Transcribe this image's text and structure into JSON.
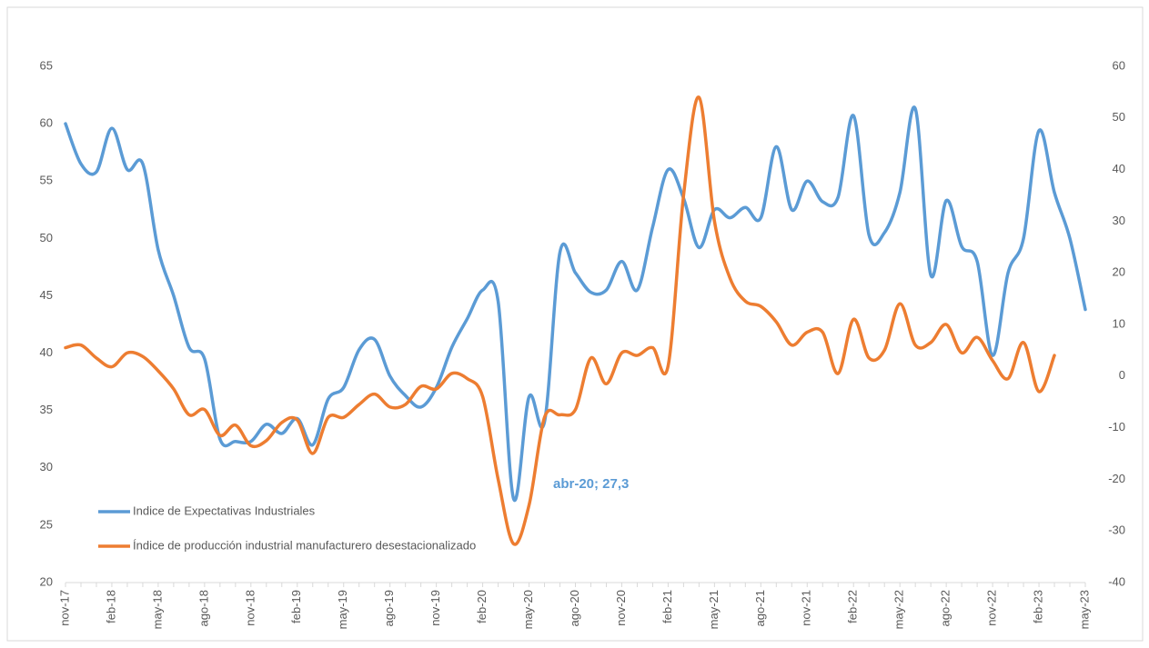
{
  "chart_data": {
    "type": "line",
    "categories": [
      "nov-17",
      null,
      null,
      "feb-18",
      null,
      null,
      "may-18",
      null,
      null,
      "ago-18",
      null,
      null,
      "nov-18",
      null,
      null,
      "feb-19",
      null,
      null,
      "may-19",
      null,
      null,
      "ago-19",
      null,
      null,
      "nov-19",
      null,
      null,
      "feb-20",
      null,
      null,
      "may-20",
      null,
      null,
      "ago-20",
      null,
      null,
      "nov-20",
      null,
      null,
      "feb-21",
      null,
      null,
      "may-21",
      null,
      null,
      "ago-21",
      null,
      null,
      "nov-21",
      null,
      null,
      "feb-22",
      null,
      null,
      "may-22",
      null,
      null,
      "ago-22",
      null,
      null,
      "nov-22",
      null,
      null,
      "feb-23",
      null,
      null,
      "may-23"
    ],
    "series": [
      {
        "name": "Indice de Expectativas Industriales",
        "color": "#5b9bd5",
        "values": [
          60,
          56.5,
          55.8,
          59.6,
          56,
          56.5,
          49,
          45,
          40.5,
          39.5,
          32.5,
          32.3,
          32.3,
          33.8,
          33,
          34.3,
          32,
          36,
          37,
          40.3,
          41.2,
          38,
          36.3,
          35.3,
          37,
          40.5,
          43,
          45.5,
          44.5,
          27.3,
          36.2,
          34,
          48.8,
          47,
          45.3,
          45.5,
          48,
          45.5,
          51,
          56,
          53.5,
          49.2,
          52.5,
          51.8,
          52.7,
          51.8,
          58,
          52.5,
          55,
          53.2,
          53.6,
          60.7,
          50.3,
          50.5,
          54,
          61.3,
          46.8,
          53.3,
          49.3,
          48,
          39.8,
          47,
          50,
          59.4,
          54,
          50,
          43.8
        ]
      },
      {
        "name": "Índice de producción industrial manufacturero desestacionalizado",
        "color": "#ed7d31",
        "axis": "y2",
        "values": [
          5.5,
          6,
          3.5,
          1.8,
          4.5,
          3.8,
          1,
          -2.5,
          -7.5,
          -6.5,
          -11.5,
          -9.5,
          -13.5,
          -12.5,
          -9,
          -8.5,
          -15,
          -8,
          -8,
          -5.5,
          -3.5,
          -6,
          -5.5,
          -2,
          -2.5,
          0.5,
          -0.5,
          -4,
          -20,
          -32.5,
          -25,
          -8,
          -7.5,
          -6.5,
          3.5,
          -1.5,
          4.5,
          4,
          5.5,
          2,
          35,
          54,
          30,
          19,
          14.5,
          13.5,
          10.5,
          6,
          8.5,
          8.5,
          0.5,
          11,
          3.5,
          5,
          14,
          6,
          6.5,
          10,
          4.5,
          7.5,
          3,
          -0.5,
          6.5,
          -3,
          4,
          null,
          null
        ]
      }
    ],
    "annotation": "abr-20; 27,3",
    "ylim": [
      20,
      65
    ],
    "yticks": [
      20,
      25,
      30,
      35,
      40,
      45,
      50,
      55,
      60,
      65
    ],
    "y2lim": [
      -40,
      60
    ],
    "y2ticks": [
      -40,
      -30,
      -20,
      -10,
      0,
      10,
      20,
      30,
      40,
      50,
      60
    ],
    "grid": false
  }
}
